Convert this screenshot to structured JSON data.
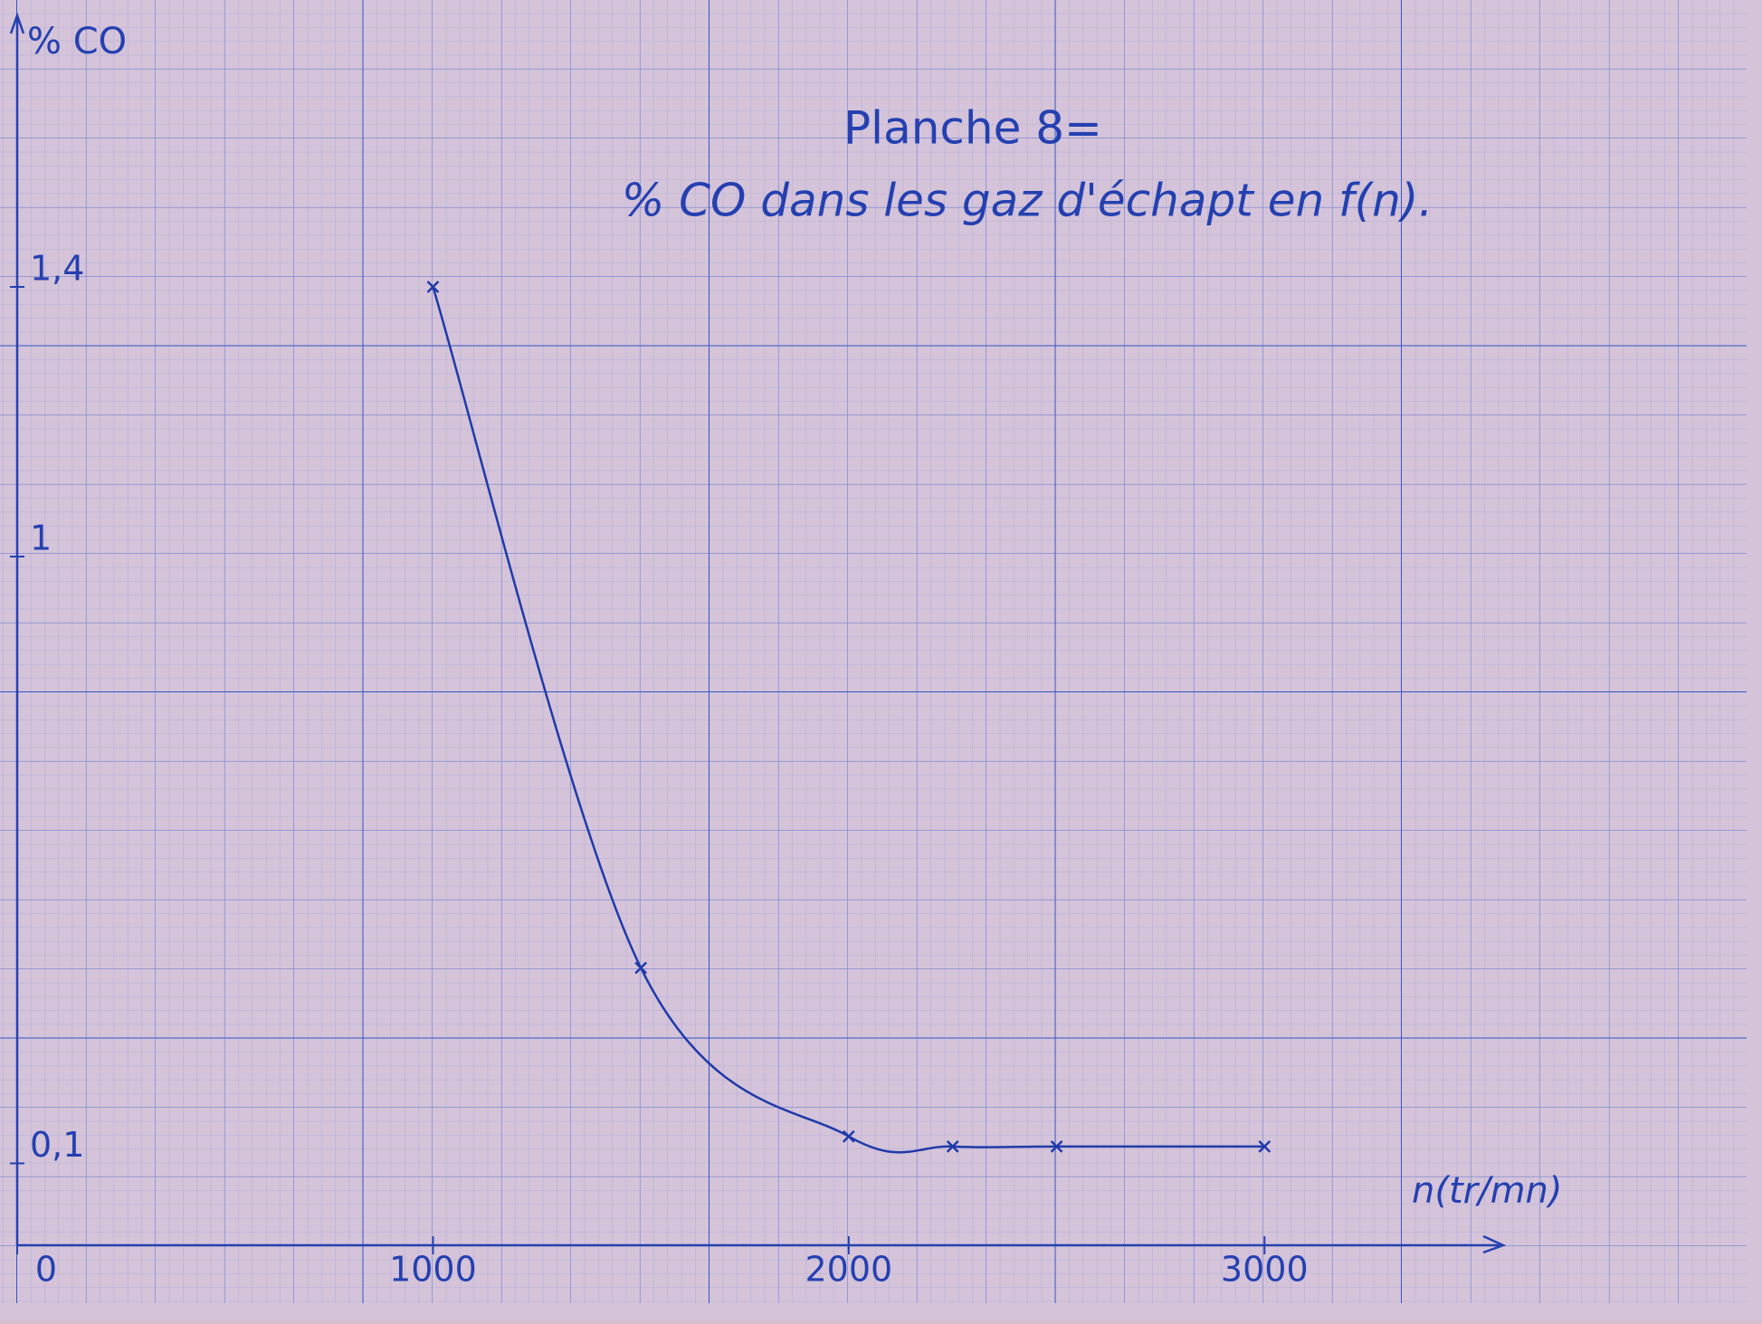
{
  "chart_data": {
    "type": "line",
    "title": "Planche 8=",
    "subtitle": "% CO dans les gaz d'échapt en f(n).",
    "y_label": "% CO",
    "x_label": "n(tr/mn)",
    "x": [
      1000,
      1500,
      2000,
      2250,
      2500,
      3000
    ],
    "series": [
      {
        "name": "% CO",
        "color": "#1f3aa8",
        "values": [
          1.4,
          0.39,
          0.14,
          0.125,
          0.125,
          0.125
        ]
      }
    ],
    "xlim": [
      0,
      3500
    ],
    "xticks": [
      0,
      1000,
      2000,
      3000
    ],
    "ylim": [
      0,
      1.8
    ],
    "yticks": [
      {
        "value": 0.1,
        "label": "0,1"
      },
      1,
      {
        "value": 1.4,
        "label": "1,4"
      }
    ],
    "grid": true
  }
}
